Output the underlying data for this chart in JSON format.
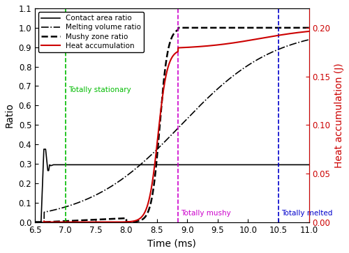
{
  "xlim": [
    6.5,
    11.0
  ],
  "ylim_left": [
    0.0,
    1.1
  ],
  "ylim_right": [
    0.0,
    0.22
  ],
  "xlabel": "Time (ms)",
  "ylabel_left": "Ratio",
  "ylabel_right": "Heat accumulation (J)",
  "vline_stationary": 7.0,
  "vline_mushy": 8.85,
  "vline_melted": 10.5,
  "label_stationary": "Totally stationary",
  "label_mushy": "Totally mushy",
  "label_melted": "Totally melted",
  "color_stationary": "#00bb00",
  "color_mushy": "#cc00cc",
  "color_melted": "#0000cc",
  "color_heat": "#cc0000",
  "legend_labels": [
    "Contact area ratio",
    "Melting volume ratio",
    "Mushy zone ratio",
    "Heat accumulation"
  ],
  "xticks": [
    6.5,
    7.0,
    7.5,
    8.0,
    8.5,
    9.0,
    9.5,
    10.0,
    10.5,
    11.0
  ],
  "yticks_left": [
    0.0,
    0.1,
    0.2,
    0.3,
    0.4,
    0.5,
    0.6,
    0.7,
    0.8,
    0.9,
    1.0,
    1.1
  ],
  "yticks_right": [
    0.0,
    0.05,
    0.1,
    0.15,
    0.2
  ]
}
